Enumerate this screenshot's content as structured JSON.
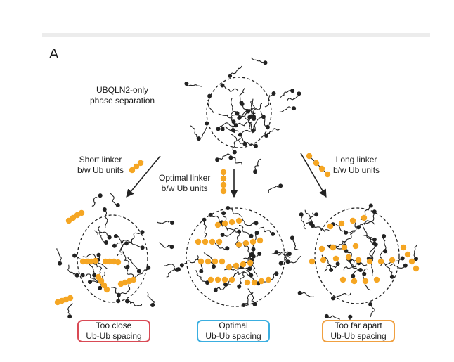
{
  "panel_letter": "A",
  "top": {
    "label_line1": "UBQLN2-only",
    "label_line2": "phase separation"
  },
  "arrows": {
    "left": {
      "line1": "Short linker",
      "line2": "b/w Ub units"
    },
    "middle": {
      "line1": "Optimal linker",
      "line2": "b/w Ub units"
    },
    "right": {
      "line1": "Long linker",
      "line2": "b/w Ub units"
    }
  },
  "outcomes": [
    {
      "line1": "Too close",
      "line2": "Ub-Ub spacing",
      "color": "#d94a55"
    },
    {
      "line1": "Optimal",
      "line2": "Ub-Ub spacing",
      "color": "#3aaee0"
    },
    {
      "line1": "Too far apart",
      "line2": "Ub-Ub spacing",
      "color": "#f0a040"
    }
  ],
  "colors": {
    "ubiquitin": "#f5a623",
    "chain": "#222222"
  }
}
